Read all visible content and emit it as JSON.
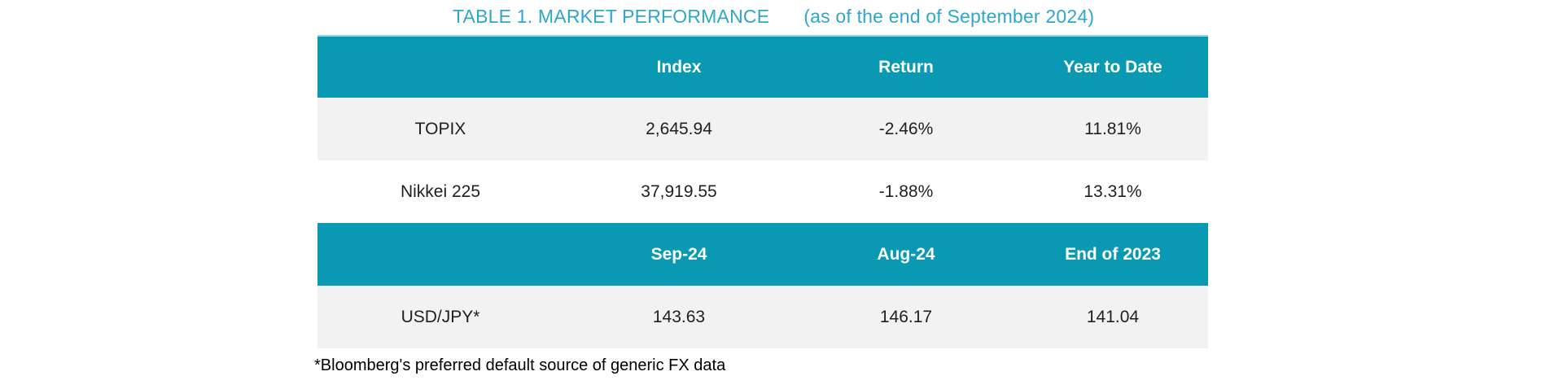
{
  "title": {
    "main": "TABLE 1. MARKET PERFORMANCE",
    "suffix": "(as of the end of September 2024)"
  },
  "colors": {
    "header_bg": "#0999B2",
    "header_text": "#FFFFFF",
    "header_top_border": "#8BDAE6",
    "title_text": "#2FA7C8",
    "shaded_row_bg": "#F2F2F3",
    "plain_row_bg": "#FFFFFF",
    "body_text": "#1F1F1F"
  },
  "chart_data": {
    "type": "table",
    "title": "TABLE 1. MARKET PERFORMANCE (as of the end of September 2024)",
    "sections": [
      {
        "headers": [
          "",
          "Index",
          "Return",
          "Year to Date"
        ],
        "rows": [
          [
            "TOPIX",
            "2,645.94",
            "-2.46%",
            "11.81%"
          ],
          [
            "Nikkei 225",
            "37,919.55",
            "-1.88%",
            "13.31%"
          ]
        ]
      },
      {
        "headers": [
          "",
          "Sep-24",
          "Aug-24",
          "End of 2023"
        ],
        "rows": [
          [
            "USD/JPY*",
            "143.63",
            "146.17",
            "141.04"
          ]
        ]
      }
    ]
  },
  "table": {
    "sections": [
      {
        "headers": [
          "",
          "Index",
          "Return",
          "Year to Date"
        ],
        "rows": [
          {
            "cells": [
              "TOPIX",
              "2,645.94",
              "-2.46%",
              "11.81%"
            ]
          },
          {
            "cells": [
              "Nikkei 225",
              "37,919.55",
              "-1.88%",
              "13.31%"
            ]
          }
        ]
      },
      {
        "headers": [
          "",
          "Sep-24",
          "Aug-24",
          "End of 2023"
        ],
        "rows": [
          {
            "cells": [
              "USD/JPY*",
              "143.63",
              "146.17",
              "141.04"
            ]
          }
        ]
      }
    ]
  },
  "footnote": "*Bloomberg's preferred default source of generic FX data"
}
